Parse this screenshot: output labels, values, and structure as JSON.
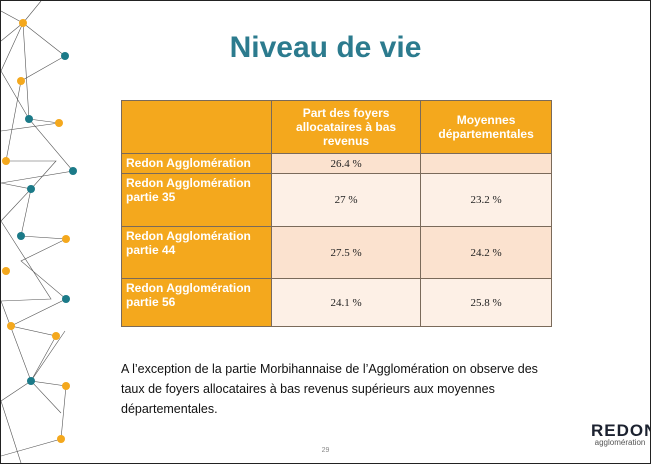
{
  "header": {
    "title": "Niveau de vie"
  },
  "table": {
    "header": [
      "Part des foyers allocataires à bas revenus",
      "Moyennes départementales"
    ],
    "rows": [
      [
        "Redon Agglomération",
        "26.4 %"
      ],
      [
        "Redon Agglomération partie 35",
        "27 %",
        "23.2 %"
      ],
      [
        "Redon Agglomération partie 44",
        "27.5 %",
        "24.2 %"
      ],
      [
        "Redon Agglomération partie 56",
        "24.1 %",
        "25.8 %"
      ]
    ]
  },
  "body": {
    "text": "A l’exception de la partie Morbihannaise de l’Agglomération on observe des taux de foyers allocataires à bas revenus supérieurs aux moyennes départementales."
  },
  "footer": {
    "page": "29",
    "logo": "REDON",
    "logo_subtitle": "agglomération"
  }
}
